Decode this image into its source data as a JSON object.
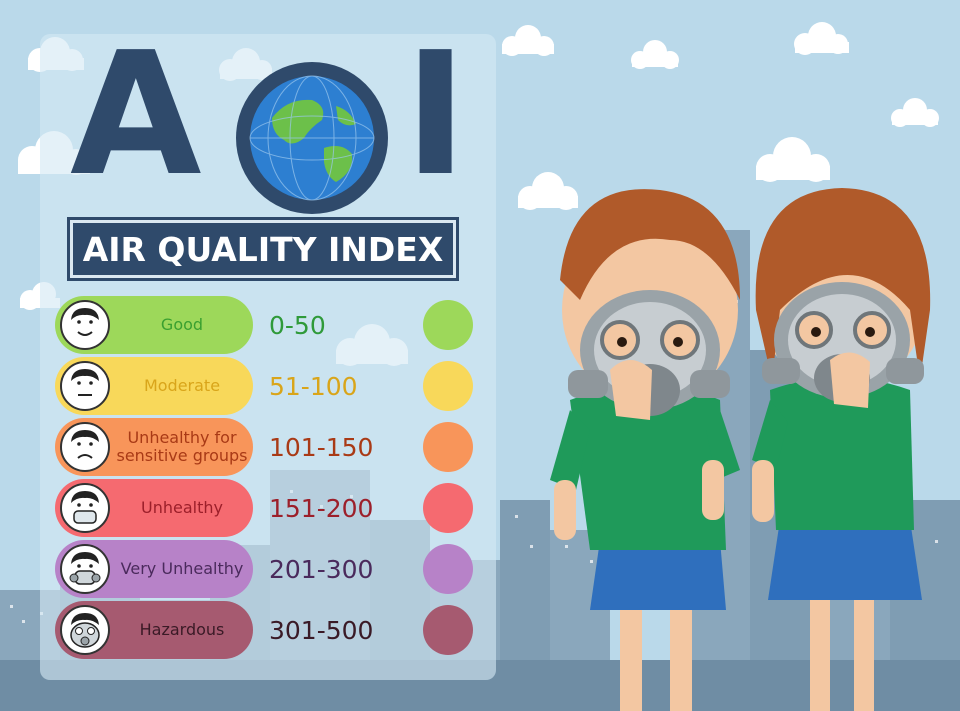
{
  "title": {
    "big_a": "A",
    "big_i": "I",
    "subtitle": "AIR QUALITY INDEX"
  },
  "colors": {
    "sky": "#bad9ea",
    "navy": "#2f4a6b"
  },
  "levels": [
    {
      "label": "Good",
      "range": "0-50",
      "color": "#9dd85a",
      "text_color": "#3aa030",
      "range_color": "#2f9a3a",
      "face": "smile"
    },
    {
      "label": "Moderate",
      "range": "51-100",
      "color": "#f8d85a",
      "text_color": "#d9a51a",
      "range_color": "#d9a51a",
      "face": "neutral"
    },
    {
      "label": "Unhealthy for sensitive groups",
      "range": "101-150",
      "color": "#f8955a",
      "text_color": "#a93a16",
      "range_color": "#a93a16",
      "face": "frown"
    },
    {
      "label": "Unhealthy",
      "range": "151-200",
      "color": "#f56a70",
      "text_color": "#9c1f2a",
      "range_color": "#9c1f2a",
      "face": "mask"
    },
    {
      "label": "Very Unhealthy",
      "range": "201-300",
      "color": "#b782c8",
      "text_color": "#4a2a5c",
      "range_color": "#4a2a5c",
      "face": "respirator"
    },
    {
      "label": "Hazardous",
      "range": "301-500",
      "color": "#a65a70",
      "text_color": "#3a1a26",
      "range_color": "#3a1a26",
      "face": "gasmask"
    }
  ]
}
